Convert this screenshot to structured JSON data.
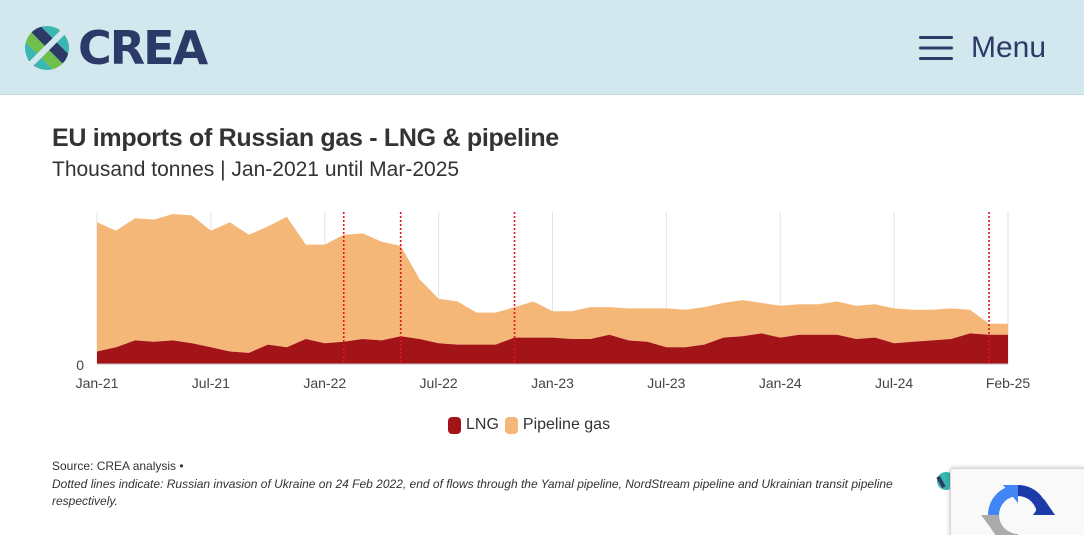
{
  "header": {
    "logo_text": "CREA",
    "menu_label": "Menu",
    "menu_icon": "hamburger-icon"
  },
  "chart_data": {
    "type": "area",
    "stacked": true,
    "title": "EU imports of Russian gas - LNG & pipeline",
    "subtitle": "Thousand tonnes | Jan-2021 until Mar-2025",
    "x_start": "2021-01",
    "x_end": "2025-02",
    "x_ticks": [
      "Jan-21",
      "Jul-21",
      "Jan-22",
      "Jul-22",
      "Jan-23",
      "Jul-23",
      "Jan-24",
      "Jul-24",
      "Feb-25"
    ],
    "y_ticks": [
      "0"
    ],
    "grid": true,
    "legend_position": "bottom",
    "series": [
      {
        "name": "LNG",
        "color": "#a31419",
        "values": [
          0.9,
          1.2,
          1.7,
          1.6,
          1.7,
          1.5,
          1.2,
          0.9,
          0.8,
          1.4,
          1.2,
          1.8,
          1.5,
          1.6,
          1.8,
          1.7,
          2.0,
          1.8,
          1.5,
          1.4,
          1.4,
          1.4,
          1.9,
          1.9,
          1.9,
          1.8,
          1.8,
          2.1,
          1.7,
          1.6,
          1.2,
          1.2,
          1.4,
          1.9,
          2.0,
          2.2,
          1.9,
          2.1,
          2.1,
          2.1,
          1.8,
          1.9,
          1.5,
          1.6,
          1.7,
          1.8,
          2.2,
          2.1,
          2.1
        ]
      },
      {
        "name": "Pipeline gas",
        "color": "#f5b778",
        "values": [
          9.3,
          8.4,
          8.8,
          8.8,
          9.1,
          9.2,
          8.4,
          9.3,
          8.5,
          8.5,
          9.4,
          6.8,
          7.1,
          7.7,
          7.6,
          7.1,
          6.5,
          4.3,
          3.2,
          3.1,
          2.3,
          2.3,
          2.2,
          2.6,
          1.9,
          2.0,
          2.3,
          2.0,
          2.3,
          2.4,
          2.8,
          2.7,
          2.7,
          2.5,
          2.6,
          2.2,
          2.3,
          2.2,
          2.2,
          2.4,
          2.4,
          2.4,
          2.5,
          2.3,
          2.2,
          2.2,
          1.7,
          0.8,
          0.8
        ]
      }
    ],
    "event_lines": [
      "2022-02",
      "2022-05",
      "2022-11",
      "2024-12"
    ],
    "event_line_color": "#e8111e"
  },
  "footer": {
    "source": "Source: CREA analysis •",
    "note": "Dotted lines indicate: Russian invasion of Ukraine on 24 Feb 2022, end of flows through the Yamal pipeline, NordStream pipeline and Ukrainian transit pipeline respectively."
  }
}
